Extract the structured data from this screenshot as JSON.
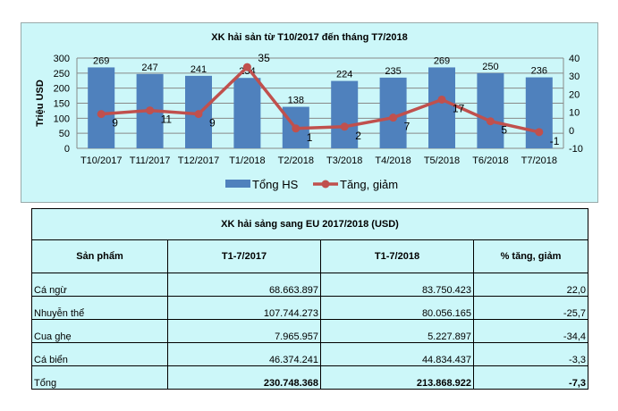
{
  "chart_data": {
    "type": "bar+line",
    "title": "XK hải sản từ T10/2017 đến tháng T7/2018",
    "ylabel": "Triệu USD",
    "categories": [
      "T10/2017",
      "T11/2017",
      "T12/2017",
      "T1/2018",
      "T2/2018",
      "T3/2018",
      "T4/2018",
      "T5/2018",
      "T6/2018",
      "T7/2018"
    ],
    "series": [
      {
        "name": "Tổng HS",
        "type": "bar",
        "axis": "left",
        "color": "#4f81bd",
        "values": [
          269,
          247,
          241,
          234,
          138,
          224,
          235,
          269,
          250,
          236
        ]
      },
      {
        "name": "Tăng, giảm",
        "type": "line",
        "axis": "right",
        "color": "#c0504d",
        "values": [
          9,
          11,
          9,
          35,
          1,
          2,
          7,
          17,
          5,
          -1
        ]
      }
    ],
    "ylim": [
      0,
      300
    ],
    "yticks": [
      0,
      50,
      100,
      150,
      200,
      250,
      300
    ],
    "y2lim": [
      -10,
      40
    ],
    "y2ticks": [
      -10,
      0,
      10,
      20,
      30,
      40
    ],
    "grid": true,
    "legend": "bottom"
  },
  "table": {
    "title": "XK hải sảng sang EU 2017/2018 (USD)",
    "headers": [
      "Sản phẩm",
      "T1-7/2017",
      "T1-7/2018",
      "% tăng, giảm"
    ],
    "rows": [
      [
        "Cá ngừ",
        "68.663.897",
        "83.750.423",
        "22,0"
      ],
      [
        "Nhuyễn thể",
        "107.744.273",
        "80.056.165",
        "-25,7"
      ],
      [
        "Cua ghẹ",
        "7.965.957",
        "5.227.897",
        "-34,4"
      ],
      [
        "Cá biển",
        "46.374.241",
        "44.834.437",
        "-3,3"
      ],
      [
        "Tổng",
        "230.748.368",
        "213.868.922",
        "-7,3"
      ]
    ]
  }
}
